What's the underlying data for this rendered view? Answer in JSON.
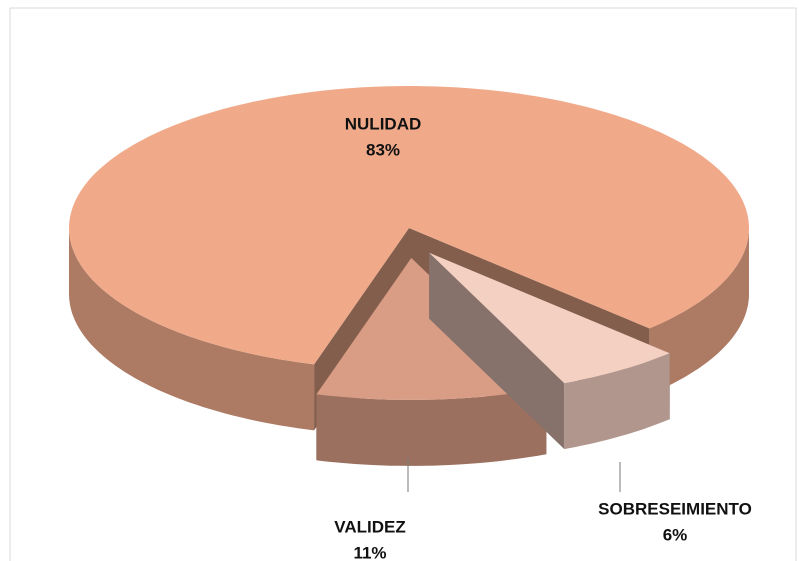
{
  "chart_data": {
    "type": "pie",
    "style": "3d",
    "categories": [
      "NULIDAD",
      "VALIDEZ",
      "SOBRESEIMIENTO"
    ],
    "values": [
      83,
      11,
      6
    ],
    "value_labels": [
      "83%",
      "11%",
      "6%"
    ],
    "colors": [
      "#f0aa8a",
      "#d99c84",
      "#f4d0c3"
    ],
    "exploded": [
      false,
      true,
      true
    ]
  }
}
